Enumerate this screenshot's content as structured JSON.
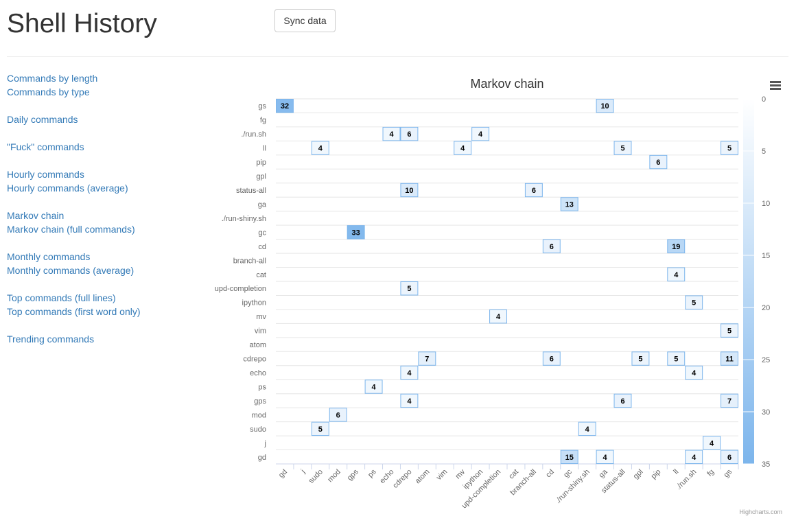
{
  "page": {
    "title": "Shell History",
    "sync_label": "Sync data"
  },
  "nav_groups": [
    {
      "items": [
        "Commands by length",
        "Commands by type"
      ]
    },
    {
      "items": [
        "Daily commands"
      ]
    },
    {
      "items": [
        "\"Fuck\" commands"
      ]
    },
    {
      "items": [
        "Hourly commands",
        "Hourly commands (average)"
      ]
    },
    {
      "items": [
        "Markov chain",
        "Markov chain (full commands)"
      ]
    },
    {
      "items": [
        "Monthly commands",
        "Monthly commands (average)"
      ]
    },
    {
      "items": [
        "Top commands (full lines)",
        "Top commands (first word only)"
      ]
    },
    {
      "items": [
        "Trending commands"
      ]
    }
  ],
  "chart_data": {
    "type": "heatmap",
    "title": "Markov chain",
    "credits": "Highcharts.com",
    "menu_icon": "hamburger-menu-icon",
    "x_categories": [
      "gd",
      "j",
      "sudo",
      "mod",
      "gps",
      "ps",
      "echo",
      "cdrepo",
      "atom",
      "vim",
      "mv",
      "ipython",
      "upd-completion",
      "cat",
      "branch-all",
      "cd",
      "gc",
      "./run-shiny.sh",
      "ga",
      "status-all",
      "gpl",
      "pip",
      "ll",
      "./run.sh",
      "fg",
      "gs"
    ],
    "y_categories": [
      "gs",
      "fg",
      "./run.sh",
      "ll",
      "pip",
      "gpl",
      "status-all",
      "ga",
      "./run-shiny.sh",
      "gc",
      "cd",
      "branch-all",
      "cat",
      "upd-completion",
      "ipython",
      "mv",
      "vim",
      "atom",
      "cdrepo",
      "echo",
      "ps",
      "gps",
      "mod",
      "sudo",
      "j",
      "gd"
    ],
    "points": [
      [
        "gd",
        "gs",
        32
      ],
      [
        "ga",
        "gs",
        10
      ],
      [
        "echo",
        "./run.sh",
        4
      ],
      [
        "cdrepo",
        "./run.sh",
        6
      ],
      [
        "ipython",
        "./run.sh",
        4
      ],
      [
        "sudo",
        "ll",
        4
      ],
      [
        "mv",
        "ll",
        4
      ],
      [
        "status-all",
        "ll",
        5
      ],
      [
        "gs",
        "ll",
        5
      ],
      [
        "pip",
        "pip",
        6
      ],
      [
        "cdrepo",
        "status-all",
        10
      ],
      [
        "branch-all",
        "status-all",
        6
      ],
      [
        "gc",
        "ga",
        13
      ],
      [
        "gps",
        "gc",
        33
      ],
      [
        "cd",
        "cd",
        6
      ],
      [
        "ll",
        "cd",
        19
      ],
      [
        "ll",
        "cat",
        4
      ],
      [
        "cdrepo",
        "upd-completion",
        5
      ],
      [
        "./run.sh",
        "ipython",
        5
      ],
      [
        "upd-completion",
        "mv",
        4
      ],
      [
        "gs",
        "vim",
        5
      ],
      [
        "atom",
        "cdrepo",
        7
      ],
      [
        "cd",
        "cdrepo",
        6
      ],
      [
        "gpl",
        "cdrepo",
        5
      ],
      [
        "ll",
        "cdrepo",
        5
      ],
      [
        "gs",
        "cdrepo",
        11
      ],
      [
        "cdrepo",
        "echo",
        4
      ],
      [
        "./run.sh",
        "echo",
        4
      ],
      [
        "ps",
        "ps",
        4
      ],
      [
        "cdrepo",
        "gps",
        4
      ],
      [
        "status-all",
        "gps",
        6
      ],
      [
        "gs",
        "gps",
        7
      ],
      [
        "mod",
        "mod",
        6
      ],
      [
        "sudo",
        "sudo",
        5
      ],
      [
        "./run-shiny.sh",
        "sudo",
        4
      ],
      [
        "fg",
        "j",
        4
      ],
      [
        "gc",
        "gd",
        15
      ],
      [
        "ga",
        "gd",
        4
      ],
      [
        "./run.sh",
        "gd",
        4
      ],
      [
        "gs",
        "gd",
        6
      ]
    ],
    "color_axis": {
      "min": 0,
      "max": 35,
      "ticks": [
        0,
        5,
        10,
        15,
        20,
        25,
        30,
        35
      ],
      "min_color": "#ffffff",
      "max_color": "#7cb5ec"
    },
    "legend_position": "right"
  }
}
